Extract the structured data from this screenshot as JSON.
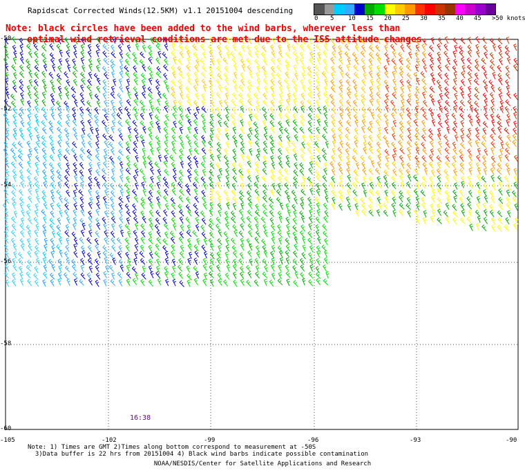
{
  "title": "Rapidscat Corrected Winds(12.5KM) v1.1 20151004 descending",
  "note_line1": "Note: black circles have been added to the wind barbs, wherever less than",
  "note_line2": "    optimal wind retrieval conditions are met due to the ISS attitude changes.",
  "legend": {
    "labels": [
      "0",
      "5",
      "10",
      "15",
      "20",
      "25",
      "30",
      "35",
      "40",
      "45",
      ">50 knots"
    ],
    "colors": [
      "#555555",
      "#999999",
      "#00ccff",
      "#33aaff",
      "#0000cc",
      "#00aa00",
      "#00dd00",
      "#ffff00",
      "#ffcc00",
      "#ff9900",
      "#ff3300",
      "#ff0000",
      "#cc3300",
      "#993300",
      "#ff00ff",
      "#cc00cc",
      "#9900cc",
      "#660099"
    ]
  },
  "lat_labels": [
    "-50",
    "-52",
    "-54",
    "-56",
    "-58",
    "-60"
  ],
  "lon_labels": [
    "-105",
    "-102",
    "-99",
    "-96",
    "-93",
    "-90"
  ],
  "timestamp": "16:38",
  "footnote_line1": "Note: 1) Times are GMT 2)Times along bottom correspond to measurement at -50S",
  "footnote_line2": "  3)Data buffer is 22 hrs from 20151004 4) Black wind barbs indicate possible contamination",
  "credit": "NOAA/NESDIS/Center for Satellite Applications and Research"
}
